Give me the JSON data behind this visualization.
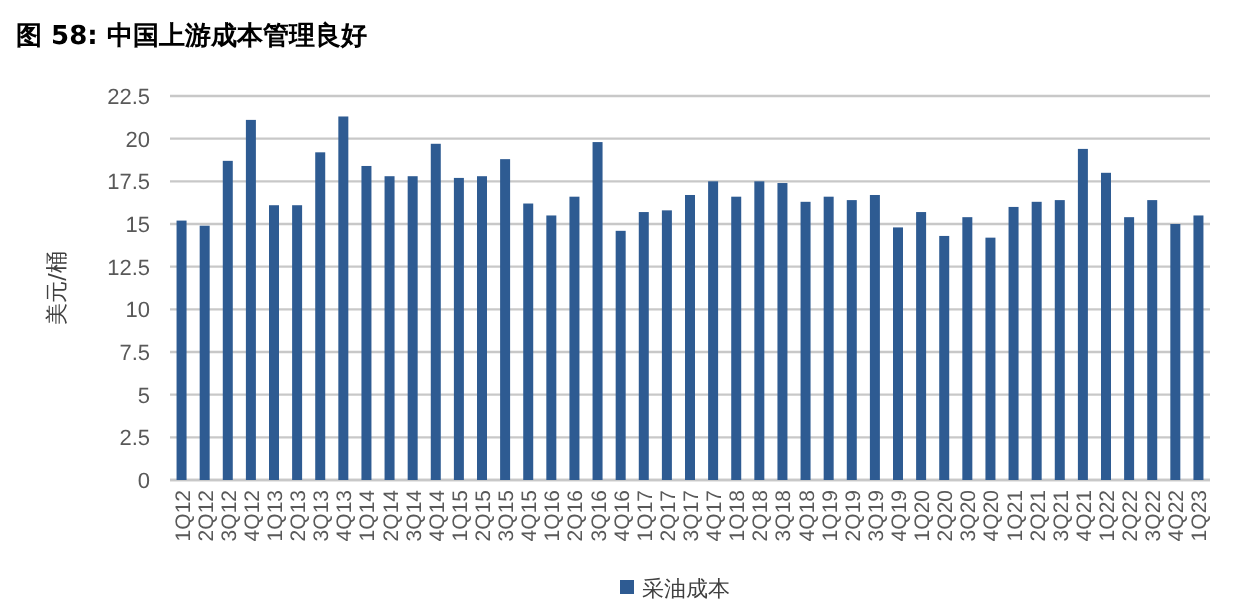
{
  "chart_data": {
    "type": "bar",
    "title": "图 58:  中国上游成本管理良好",
    "ylabel": "美元/桶",
    "categories": [
      "1Q12",
      "2Q12",
      "3Q12",
      "4Q12",
      "1Q13",
      "2Q13",
      "3Q13",
      "4Q13",
      "1Q14",
      "2Q14",
      "3Q14",
      "4Q14",
      "1Q15",
      "2Q15",
      "3Q15",
      "4Q15",
      "1Q16",
      "2Q16",
      "3Q16",
      "4Q16",
      "1Q17",
      "2Q17",
      "3Q17",
      "4Q17",
      "1Q18",
      "2Q18",
      "3Q18",
      "4Q18",
      "1Q19",
      "2Q19",
      "3Q19",
      "4Q19",
      "1Q20",
      "2Q20",
      "3Q20",
      "4Q20",
      "1Q21",
      "2Q21",
      "3Q21",
      "4Q21",
      "1Q22",
      "2Q22",
      "3Q22",
      "4Q22",
      "1Q23"
    ],
    "series": [
      {
        "name": "采油成本",
        "color": "#2e5b92",
        "values": [
          15.2,
          14.9,
          18.7,
          21.1,
          16.1,
          16.1,
          19.2,
          21.3,
          18.4,
          17.8,
          17.8,
          19.7,
          17.7,
          17.8,
          18.8,
          16.2,
          15.5,
          16.6,
          19.8,
          14.6,
          15.7,
          15.8,
          16.7,
          17.5,
          16.6,
          17.5,
          17.4,
          16.3,
          16.6,
          16.4,
          16.7,
          14.8,
          15.7,
          14.3,
          15.4,
          14.2,
          16.0,
          16.3,
          16.4,
          19.4,
          18.0,
          15.4,
          16.4,
          15.0,
          15.5
        ]
      }
    ],
    "ylim": [
      0,
      22.5
    ],
    "yticks": [
      0,
      2.5,
      5,
      7.5,
      10,
      12.5,
      15,
      17.5,
      20,
      22.5
    ],
    "grid": "y",
    "legend": "bottom"
  }
}
